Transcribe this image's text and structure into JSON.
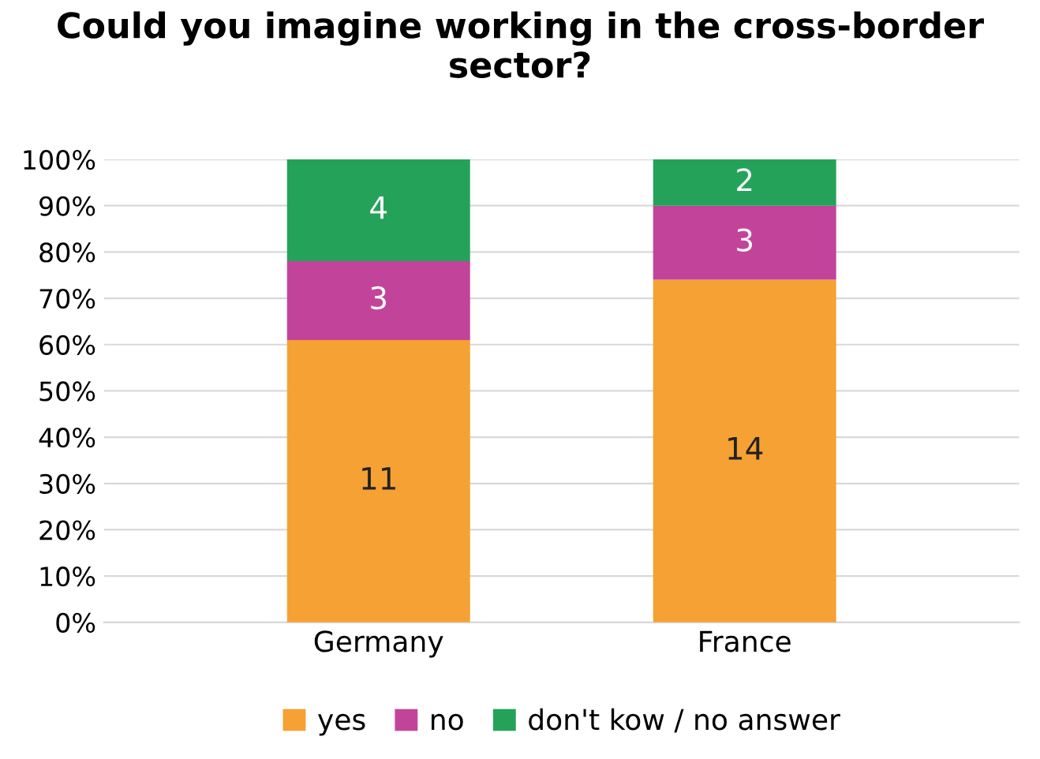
{
  "chart_data": {
    "type": "bar",
    "stacked": true,
    "title": "Could you imagine working in the cross-border sector?",
    "categories": [
      "Germany",
      "France"
    ],
    "series": [
      {
        "name": "yes",
        "color": "#f5a133",
        "values": [
          61,
          74
        ]
      },
      {
        "name": "no",
        "color": "#c2449a",
        "values": [
          17,
          16
        ]
      },
      {
        "name": "don't kow / no answer",
        "color": "#25a25a",
        "values": [
          22,
          10
        ]
      }
    ],
    "annotations": [
      "11",
      "3",
      "4",
      "14",
      "3",
      "2"
    ],
    "ylim": [
      0,
      100
    ],
    "yticks": [
      {
        "value": 0,
        "label": "0%"
      },
      {
        "value": 10,
        "label": "10%"
      },
      {
        "value": 20,
        "label": "20%"
      },
      {
        "value": 30,
        "label": "30%"
      },
      {
        "value": 40,
        "label": "40%"
      },
      {
        "value": 50,
        "label": "50%"
      },
      {
        "value": 60,
        "label": "60%"
      },
      {
        "value": 70,
        "label": "70%"
      },
      {
        "value": 80,
        "label": "80%"
      },
      {
        "value": 90,
        "label": "90%"
      },
      {
        "value": 100,
        "label": "100%"
      }
    ],
    "grid": "y",
    "legend": "bottom"
  }
}
